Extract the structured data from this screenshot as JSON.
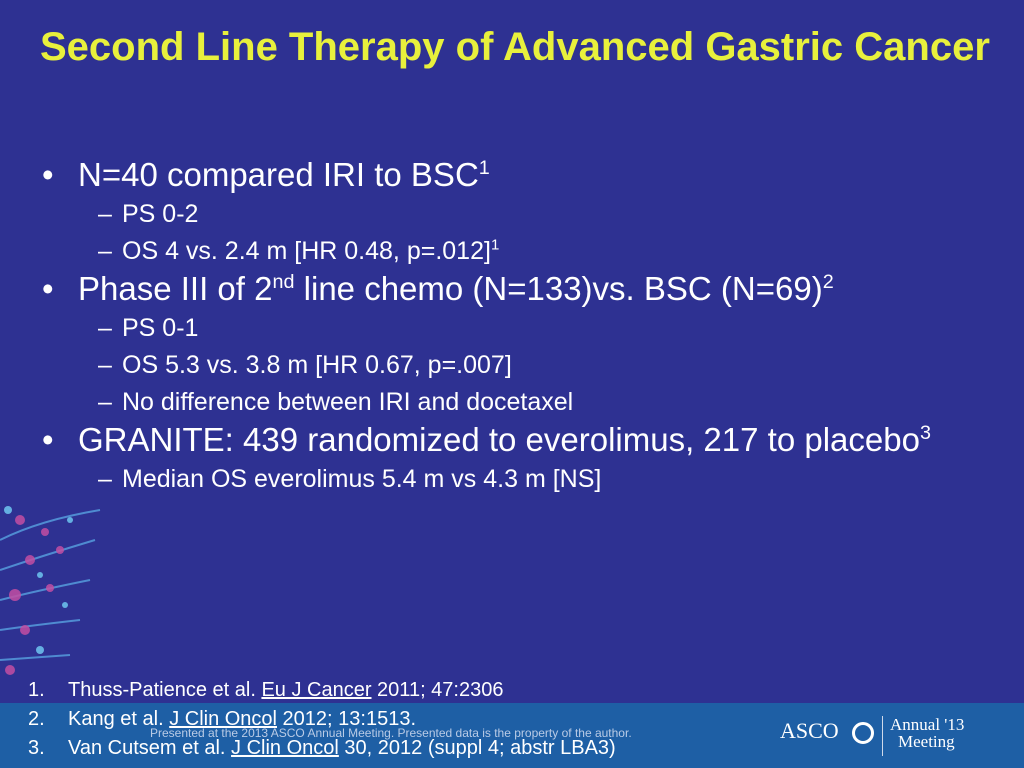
{
  "slide": {
    "title": "Second Line Therapy of Advanced Gastric Cancer",
    "bullets": [
      {
        "pre": "N=40 compared IRI to BSC",
        "sup1": "1",
        "mid": "",
        "sup2": "",
        "subs": [
          {
            "text": "PS 0-2",
            "sup": ""
          },
          {
            "text": "OS 4 vs. 2.4 m [HR 0.48, p=.012]",
            "sup": "1"
          }
        ]
      },
      {
        "pre": "Phase III of 2",
        "sup1": "nd",
        "mid": " line chemo (N=133)vs. BSC (N=69)",
        "sup2": "2",
        "subs": [
          {
            "text": "PS 0-1",
            "sup": ""
          },
          {
            "text": "OS 5.3 vs. 3.8 m [HR 0.67, p=.007]",
            "sup": ""
          },
          {
            "text": "No difference between IRI and docetaxel",
            "sup": ""
          }
        ]
      },
      {
        "pre": "GRANITE: 439 randomized to everolimus, 217 to placebo",
        "sup1": "3",
        "mid": "",
        "sup2": "",
        "subs": [
          {
            "text": "Median OS everolimus 5.4 m vs 4.3 m [NS]",
            "sup": ""
          }
        ]
      }
    ],
    "bullet_symbol": "•",
    "dash_symbol": "–",
    "references": [
      {
        "num": "1.",
        "authors": "Thuss-Patience et al. ",
        "journal": "Eu J Cancer",
        "rest": " 2011; 47:2306"
      },
      {
        "num": "2.",
        "authors": "Kang et al. ",
        "journal": "J Clin Oncol",
        "rest": " 2012; 13:1513."
      },
      {
        "num": "3.",
        "authors": "Van Cutsem et al. ",
        "journal": "J Clin Oncol",
        "rest": " 30, 2012 (suppl 4; abstr LBA3)"
      }
    ]
  },
  "footer": {
    "notice": "Presented at the 2013 ASCO Annual Meeting. Presented data is the property of the author.",
    "logo_text": "ASCO",
    "meeting_line1": "Annual '13",
    "meeting_line2": "Meeting"
  },
  "colors": {
    "background": "#2e3192",
    "title": "#e8f03c",
    "body_text": "#ffffff",
    "footer_band": "#1e5fa5"
  }
}
